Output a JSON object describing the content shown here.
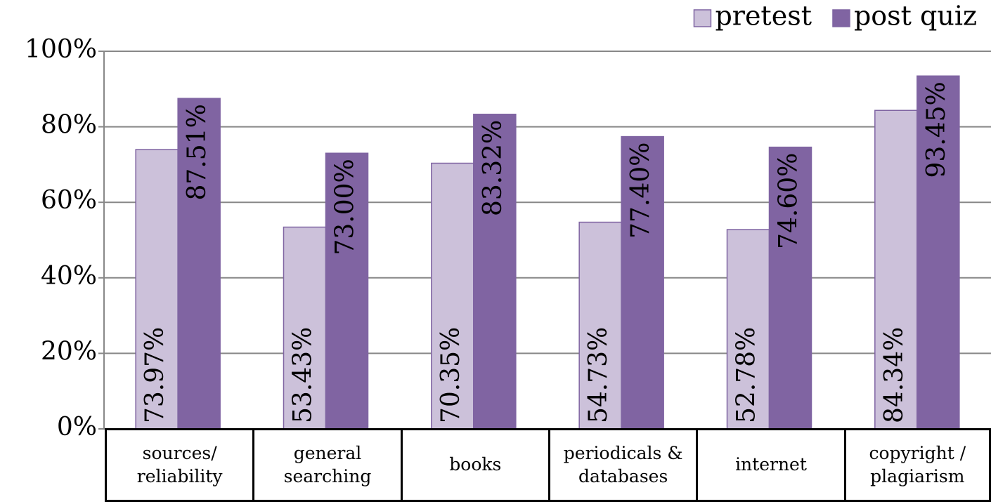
{
  "chart_data": {
    "type": "bar",
    "categories": [
      "sources/ reliability",
      "general searching",
      "books",
      "periodicals & databases",
      "internet",
      "copyright / plagiarism"
    ],
    "series": [
      {
        "name": "pretest",
        "color": "#ccc1da",
        "values": [
          73.97,
          53.43,
          70.35,
          54.73,
          52.78,
          84.34
        ],
        "value_labels": [
          "73.97%",
          "53.43%",
          "70.35%",
          "54.73%",
          "52.78%",
          "84.34%"
        ]
      },
      {
        "name": "post quiz",
        "color": "#8064a2",
        "values": [
          87.51,
          73.0,
          83.32,
          77.4,
          74.6,
          93.45
        ],
        "value_labels": [
          "87.51%",
          "73.00%",
          "83.32%",
          "77.40%",
          "74.60%",
          "93.45%"
        ]
      }
    ],
    "ylim": [
      0,
      100
    ],
    "yticks": [
      {
        "value": 0,
        "label": "0%"
      },
      {
        "value": 20,
        "label": "20%"
      },
      {
        "value": 40,
        "label": "40%"
      },
      {
        "value": 60,
        "label": "60%"
      },
      {
        "value": 80,
        "label": "80%"
      },
      {
        "value": 100,
        "label": "100%"
      }
    ],
    "grid": true,
    "legend": "top-right"
  }
}
